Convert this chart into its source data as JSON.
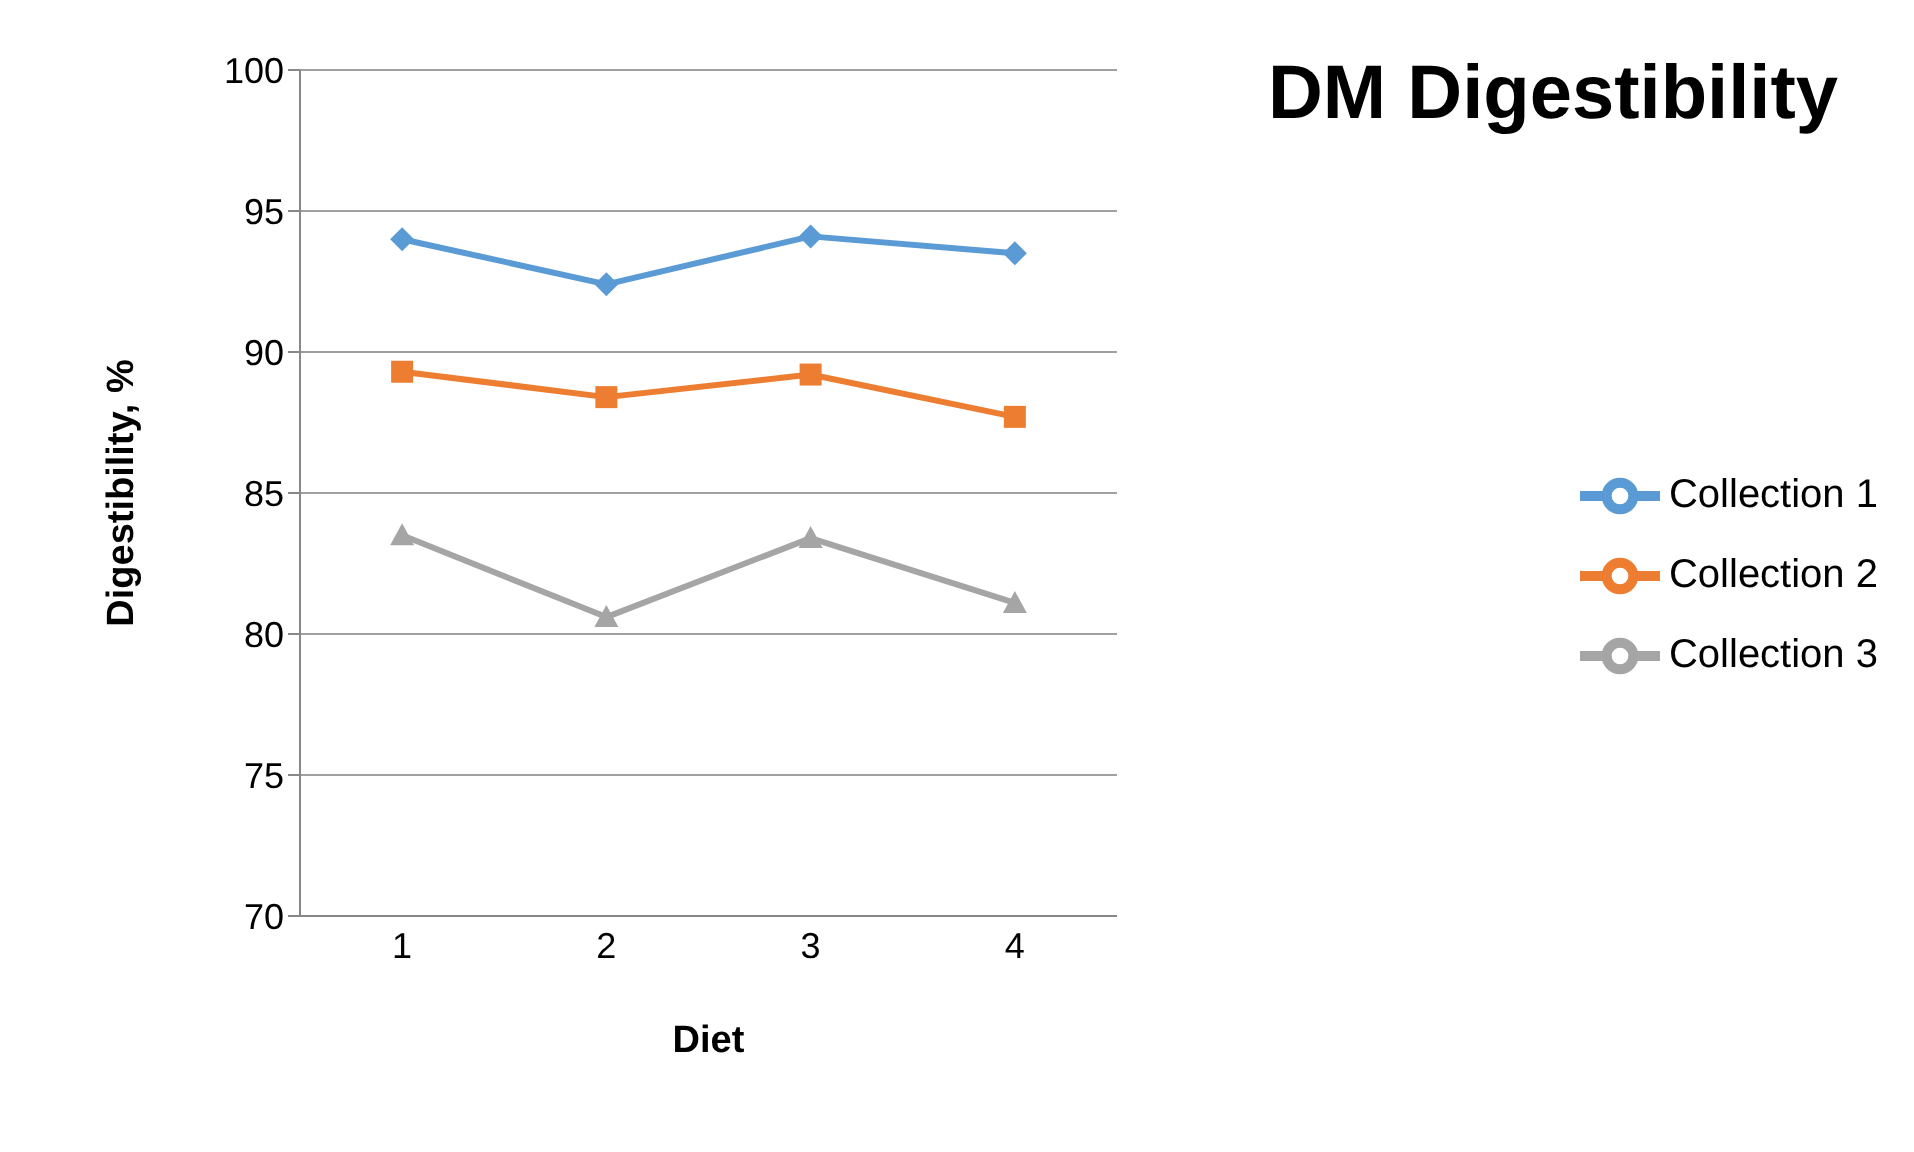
{
  "chart_data": {
    "type": "line",
    "title": "DM Digestibility",
    "xlabel": "Diet",
    "ylabel": "Digestibility, %",
    "categories": [
      "1",
      "2",
      "3",
      "4"
    ],
    "series": [
      {
        "name": "Collection 1",
        "color": "#5b9bd5",
        "marker": "diamond",
        "values": [
          94.0,
          92.4,
          94.1,
          93.5
        ]
      },
      {
        "name": "Collection 2",
        "color": "#ed7d31",
        "marker": "square",
        "values": [
          89.3,
          88.4,
          89.2,
          87.7
        ]
      },
      {
        "name": "Collection 3",
        "color": "#a5a5a5",
        "marker": "triangle",
        "values": [
          83.5,
          80.6,
          83.4,
          81.1
        ]
      }
    ],
    "ylim": [
      70,
      100
    ],
    "yticks": [
      70,
      75,
      80,
      85,
      90,
      95,
      100
    ],
    "grid": "y",
    "legend": "right"
  }
}
